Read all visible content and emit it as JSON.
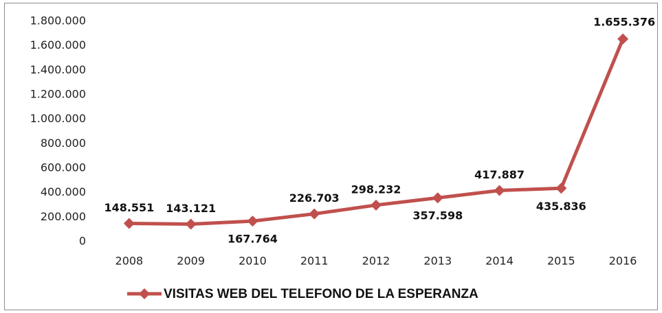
{
  "chart_data": {
    "type": "line",
    "categories": [
      "2008",
      "2009",
      "2010",
      "2011",
      "2012",
      "2013",
      "2014",
      "2015",
      "2016"
    ],
    "series": [
      {
        "name": "VISITAS WEB DEL TELEFONO DE LA ESPERANZA",
        "color": "#c0504d",
        "values": [
          148551,
          143121,
          167764,
          226703,
          298232,
          357598,
          417887,
          435836,
          1655376
        ],
        "value_labels": [
          "148.551",
          "143.121",
          "167.764",
          "226.703",
          "298.232",
          "357.598",
          "417.887",
          "435.836",
          "1.655.376"
        ]
      }
    ],
    "ylim": [
      0,
      1800000
    ],
    "yticks": [
      0,
      {
        "value": 200000,
        "label": "200.000"
      },
      {
        "value": 400000,
        "label": "400.000"
      },
      {
        "value": 600000,
        "label": "600.000"
      },
      {
        "value": 800000,
        "label": "800.000"
      },
      {
        "value": 1000000,
        "label": "1.000.000"
      },
      {
        "value": 1200000,
        "label": "1.200.000"
      },
      {
        "value": 1400000,
        "label": "1.400.000"
      },
      {
        "value": 1600000,
        "label": "1.600.000"
      },
      {
        "value": 1800000,
        "label": "1.800.000"
      }
    ],
    "grid": false,
    "legend": "bottom"
  }
}
